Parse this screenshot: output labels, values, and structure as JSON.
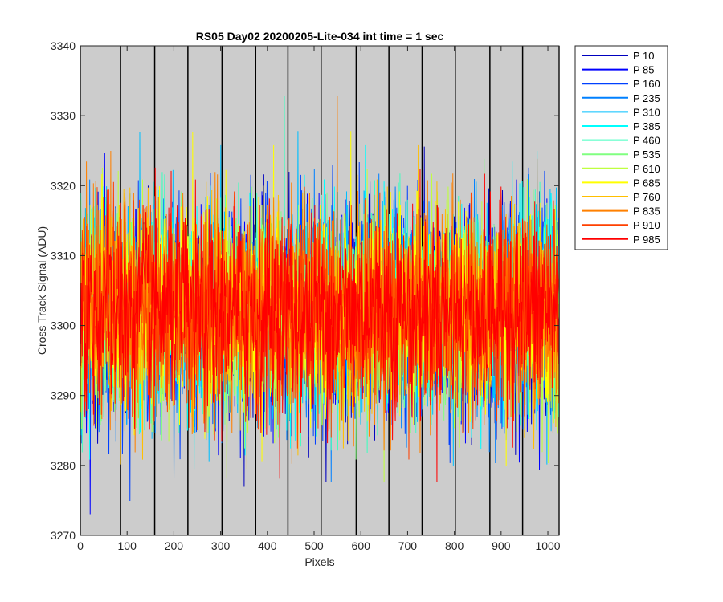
{
  "chart_data": {
    "type": "line",
    "title": "RS05 Day02 20200205-Lite-034 int time = 1 sec",
    "xlabel": "Pixels",
    "ylabel": "Cross Track Signal (ADU)",
    "xlim": [
      0,
      1024
    ],
    "ylim": [
      3270,
      3340
    ],
    "xticks": [
      0,
      100,
      200,
      300,
      400,
      500,
      600,
      700,
      800,
      900,
      1000
    ],
    "yticks": [
      3270,
      3280,
      3290,
      3300,
      3310,
      3320,
      3330,
      3340
    ],
    "vertical_lines": [
      0,
      86,
      159,
      230,
      303,
      375,
      444,
      515,
      590,
      660,
      731,
      802,
      876,
      946,
      1024
    ],
    "background": "#cccccc",
    "legend_position": "outside-top-right",
    "series_summary": {
      "mean": 3302,
      "typical_min": 3278,
      "typical_max": 3327,
      "extreme_max": 3336,
      "extreme_min": 3273,
      "points_per_series": 1024
    },
    "series": [
      {
        "name": "P 10",
        "color": "#0000bf"
      },
      {
        "name": "P 85",
        "color": "#0000ff"
      },
      {
        "name": "P 160",
        "color": "#0040ff"
      },
      {
        "name": "P 235",
        "color": "#0080ff"
      },
      {
        "name": "P 310",
        "color": "#00bfff"
      },
      {
        "name": "P 385",
        "color": "#00ffff"
      },
      {
        "name": "P 460",
        "color": "#40ffbf"
      },
      {
        "name": "P 535",
        "color": "#80ff80"
      },
      {
        "name": "P 610",
        "color": "#bfff40"
      },
      {
        "name": "P 685",
        "color": "#ffff00"
      },
      {
        "name": "P 760",
        "color": "#ffbf00"
      },
      {
        "name": "P 835",
        "color": "#ff8000"
      },
      {
        "name": "P 910",
        "color": "#ff4000"
      },
      {
        "name": "P 985",
        "color": "#ff0000"
      }
    ]
  }
}
